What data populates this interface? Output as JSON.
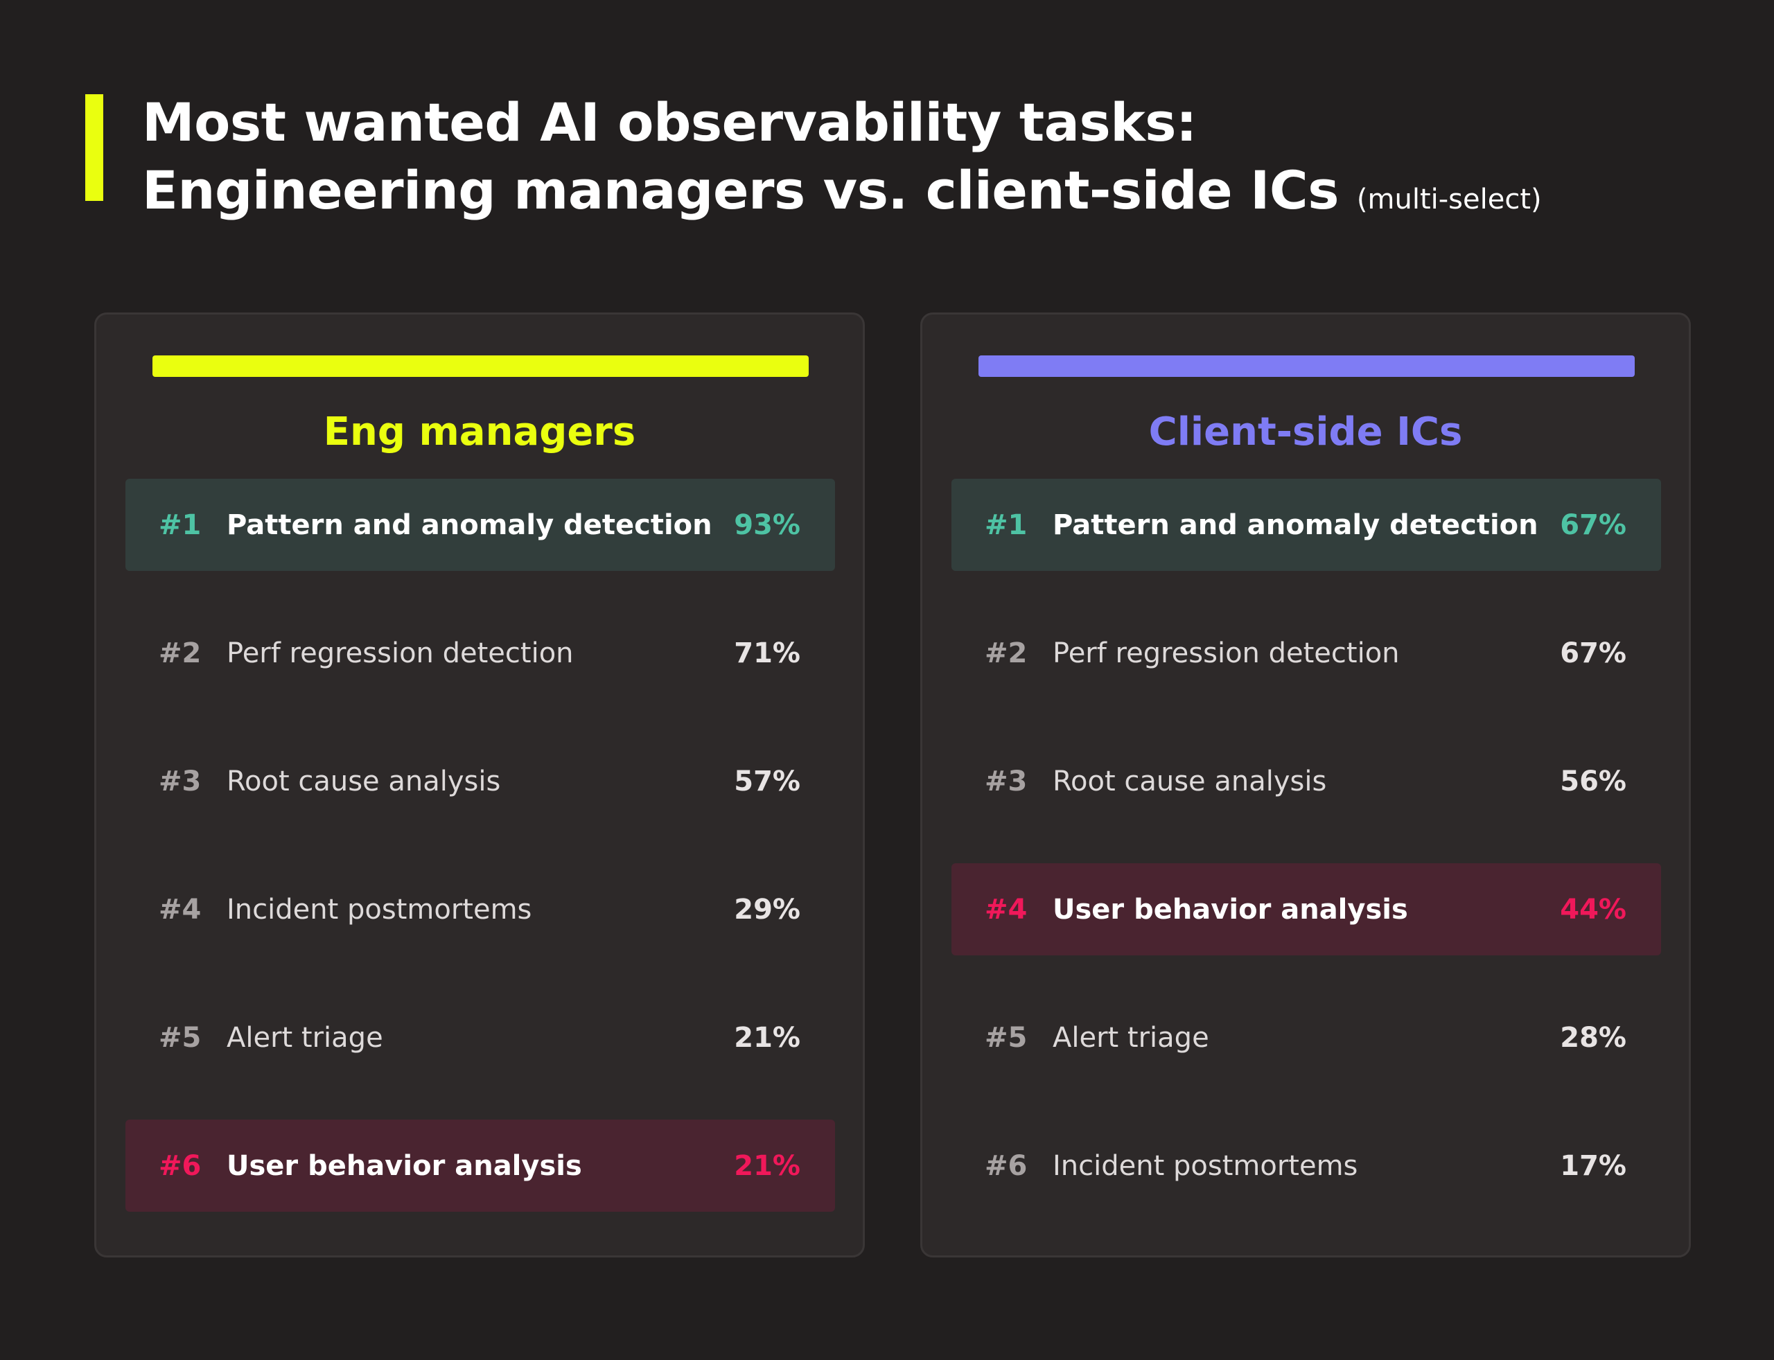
{
  "header": {
    "title_line1": "Most wanted AI observability tasks:",
    "title_line2": "Engineering managers vs. client-side ICs",
    "title_note": "(multi-select)"
  },
  "colors": {
    "background": "#221f1f",
    "eng_accent": "#eaff0f",
    "ic_accent": "#7f7cf4",
    "top_highlight": "#4ec3a4",
    "user_behavior_highlight": "#f0185a"
  },
  "chart_data": [
    {
      "type": "table",
      "title": "Eng managers",
      "columns": [
        "rank",
        "task",
        "percent"
      ],
      "rows": [
        {
          "rank": "#1",
          "task": "Pattern and anomaly detection",
          "percent": "93%",
          "value": 93,
          "highlight": "top"
        },
        {
          "rank": "#2",
          "task": "Perf regression detection",
          "percent": "71%",
          "value": 71,
          "highlight": ""
        },
        {
          "rank": "#3",
          "task": "Root cause analysis",
          "percent": "57%",
          "value": 57,
          "highlight": ""
        },
        {
          "rank": "#4",
          "task": "Incident postmortems",
          "percent": "29%",
          "value": 29,
          "highlight": ""
        },
        {
          "rank": "#5",
          "task": "Alert triage",
          "percent": "21%",
          "value": 21,
          "highlight": ""
        },
        {
          "rank": "#6",
          "task": "User behavior analysis",
          "percent": "21%",
          "value": 21,
          "highlight": "bottom"
        }
      ]
    },
    {
      "type": "table",
      "title": "Client-side ICs",
      "columns": [
        "rank",
        "task",
        "percent"
      ],
      "rows": [
        {
          "rank": "#1",
          "task": "Pattern and anomaly detection",
          "percent": "67%",
          "value": 67,
          "highlight": "top"
        },
        {
          "rank": "#2",
          "task": "Perf regression detection",
          "percent": "67%",
          "value": 67,
          "highlight": ""
        },
        {
          "rank": "#3",
          "task": "Root cause analysis",
          "percent": "56%",
          "value": 56,
          "highlight": ""
        },
        {
          "rank": "#4",
          "task": "User behavior analysis",
          "percent": "44%",
          "value": 44,
          "highlight": "bottom"
        },
        {
          "rank": "#5",
          "task": "Alert triage",
          "percent": "28%",
          "value": 28,
          "highlight": ""
        },
        {
          "rank": "#6",
          "task": "Incident postmortems",
          "percent": "17%",
          "value": 17,
          "highlight": ""
        }
      ]
    }
  ]
}
